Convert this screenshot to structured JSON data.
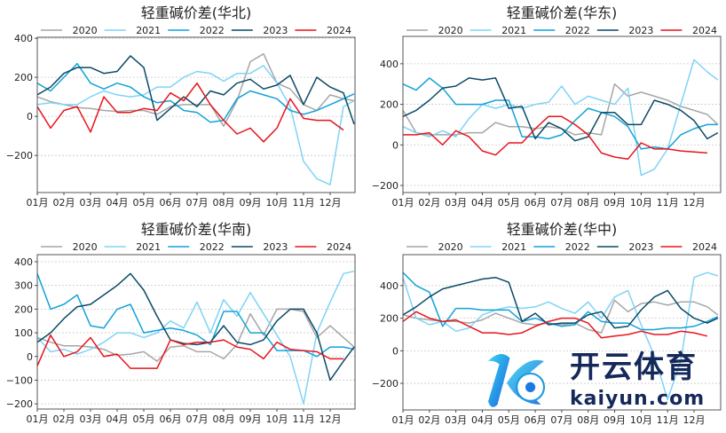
{
  "series_colors": {
    "2020": "#a6a6a6",
    "2021": "#7fd3f7",
    "2022": "#12a3d8",
    "2023": "#0b4a66",
    "2024": "#e8141c"
  },
  "watermark": {
    "brand_cn": "开云体育",
    "brand_en": "kaiyun.com"
  },
  "chart_data": [
    {
      "type": "line",
      "title": "轻重碱价差(华北)",
      "legend": "top",
      "xlabel": "",
      "ylabel": "",
      "grid": "horizontal dashed",
      "xticks": [
        "01月",
        "02月",
        "03月",
        "04月",
        "05月",
        "06月",
        "07月",
        "08月",
        "09月",
        "10月",
        "11月",
        "12月"
      ],
      "xlim": [
        1,
        12.93
      ],
      "ylim": [
        -390,
        405
      ],
      "yticks": [
        -200,
        0,
        200,
        400
      ],
      "x": [
        1,
        1.5,
        2,
        2.5,
        3,
        3.5,
        4,
        4.5,
        5,
        5.5,
        6,
        6.5,
        7,
        7.5,
        8,
        8.5,
        9,
        9.5,
        10,
        10.5,
        11,
        11.5,
        12,
        12.5,
        12.9
      ],
      "series": [
        {
          "name": "2020",
          "values": [
            100,
            75,
            60,
            45,
            40,
            30,
            25,
            30,
            30,
            10,
            50,
            60,
            60,
            60,
            -50,
            80,
            280,
            320,
            170,
            140,
            60,
            30,
            110,
            90,
            80
          ]
        },
        {
          "name": "2021",
          "values": [
            60,
            70,
            60,
            60,
            100,
            130,
            110,
            100,
            110,
            150,
            150,
            200,
            230,
            220,
            180,
            220,
            220,
            260,
            170,
            50,
            -230,
            -320,
            -350,
            50,
            80
          ]
        },
        {
          "name": "2022",
          "values": [
            170,
            130,
            200,
            270,
            170,
            140,
            170,
            150,
            100,
            70,
            80,
            30,
            20,
            -30,
            -20,
            90,
            130,
            110,
            90,
            30,
            10,
            30,
            60,
            90,
            115
          ]
        },
        {
          "name": "2023",
          "values": [
            110,
            150,
            220,
            250,
            250,
            220,
            230,
            310,
            250,
            -20,
            40,
            100,
            50,
            130,
            110,
            170,
            190,
            140,
            160,
            210,
            60,
            200,
            150,
            120,
            -40
          ]
        },
        {
          "name": "2024",
          "values": [
            50,
            -60,
            30,
            50,
            -80,
            100,
            20,
            20,
            40,
            30,
            120,
            80,
            170,
            60,
            -20,
            -90,
            -60,
            -130,
            -60,
            90,
            -10,
            -20,
            -20,
            -70,
            null
          ]
        }
      ]
    },
    {
      "type": "line",
      "title": "轻重碱价差(华东)",
      "legend": "top",
      "xlabel": "",
      "ylabel": "",
      "grid": "horizontal dashed",
      "xticks": [
        "01月",
        "02月",
        "03月",
        "04月",
        "05月",
        "06月",
        "07月",
        "08月",
        "09月",
        "10月",
        "11月",
        "12月"
      ],
      "xlim": [
        1,
        12.93
      ],
      "ylim": [
        -235,
        535
      ],
      "yticks": [
        -200,
        0,
        200,
        400
      ],
      "x": [
        1,
        1.5,
        2,
        2.5,
        3,
        3.5,
        4,
        4.5,
        5,
        5.5,
        6,
        6.5,
        7,
        7.5,
        8,
        8.5,
        9,
        9.5,
        10,
        10.5,
        11,
        11.5,
        12,
        12.5,
        12.9
      ],
      "series": [
        {
          "name": "2020",
          "values": [
            170,
            60,
            50,
            50,
            50,
            60,
            60,
            110,
            90,
            90,
            80,
            90,
            80,
            50,
            60,
            50,
            300,
            240,
            260,
            240,
            220,
            190,
            170,
            150,
            100
          ]
        },
        {
          "name": "2021",
          "values": [
            90,
            60,
            40,
            70,
            40,
            130,
            200,
            180,
            200,
            180,
            200,
            210,
            290,
            200,
            240,
            220,
            200,
            280,
            -150,
            -120,
            -20,
            200,
            420,
            360,
            320
          ]
        },
        {
          "name": "2022",
          "values": [
            300,
            270,
            330,
            280,
            200,
            200,
            200,
            220,
            220,
            40,
            40,
            30,
            50,
            120,
            180,
            160,
            140,
            90,
            -20,
            -10,
            -20,
            50,
            80,
            100,
            100
          ]
        },
        {
          "name": "2023",
          "values": [
            140,
            170,
            220,
            280,
            290,
            330,
            320,
            330,
            180,
            190,
            30,
            110,
            80,
            20,
            40,
            160,
            160,
            100,
            100,
            220,
            200,
            170,
            120,
            30,
            60
          ]
        },
        {
          "name": "2024",
          "values": [
            50,
            50,
            60,
            0,
            70,
            40,
            -30,
            -50,
            10,
            10,
            80,
            140,
            140,
            100,
            50,
            -40,
            -60,
            -70,
            10,
            -20,
            -20,
            -30,
            -35,
            -40,
            null
          ]
        }
      ]
    },
    {
      "type": "line",
      "title": "轻重碱价差(华南)",
      "legend": "top",
      "xlabel": "",
      "ylabel": "",
      "grid": "horizontal dashed",
      "xticks": [
        "01月",
        "02月",
        "03月",
        "04月",
        "05月",
        "06月",
        "07月",
        "08月",
        "09月",
        "10月",
        "11月",
        "12月"
      ],
      "xlim": [
        1,
        12.93
      ],
      "ylim": [
        -222,
        430
      ],
      "yticks": [
        -200,
        -100,
        0,
        100,
        200,
        300,
        400
      ],
      "x": [
        1,
        1.5,
        2,
        2.5,
        3,
        3.5,
        4,
        4.5,
        5,
        5.5,
        6,
        6.5,
        7,
        7.5,
        8,
        8.5,
        9,
        9.5,
        10,
        10.5,
        11,
        11.5,
        12,
        12.5,
        12.9
      ],
      "series": [
        {
          "name": "2020",
          "values": [
            80,
            60,
            45,
            45,
            40,
            30,
            5,
            10,
            20,
            -20,
            40,
            45,
            20,
            20,
            -10,
            50,
            180,
            90,
            200,
            200,
            190,
            80,
            130,
            80,
            40
          ]
        },
        {
          "name": "2021",
          "values": [
            80,
            20,
            30,
            10,
            30,
            60,
            100,
            100,
            80,
            100,
            150,
            120,
            230,
            100,
            240,
            170,
            270,
            180,
            90,
            0,
            -200,
            100,
            230,
            350,
            360
          ]
        },
        {
          "name": "2022",
          "values": [
            350,
            200,
            220,
            260,
            130,
            120,
            200,
            220,
            100,
            110,
            120,
            110,
            90,
            50,
            190,
            190,
            100,
            100,
            25,
            25,
            25,
            0,
            40,
            40,
            30
          ]
        },
        {
          "name": "2023",
          "values": [
            60,
            100,
            160,
            210,
            220,
            260,
            300,
            350,
            280,
            170,
            70,
            55,
            50,
            60,
            130,
            60,
            50,
            70,
            150,
            200,
            200,
            100,
            -100,
            -20,
            40
          ]
        },
        {
          "name": "2024",
          "values": [
            -40,
            90,
            0,
            20,
            80,
            0,
            10,
            -50,
            -50,
            -50,
            70,
            50,
            60,
            60,
            70,
            40,
            30,
            -10,
            60,
            30,
            25,
            20,
            -10,
            -10,
            null
          ]
        }
      ]
    },
    {
      "type": "line",
      "title": "轻重碱价差(华中)",
      "legend": "top",
      "xlabel": "",
      "ylabel": "",
      "grid": "horizontal dashed",
      "xticks": [
        "01月",
        "02月",
        "03月",
        "04月",
        "05月",
        "06月",
        "07月",
        "08月",
        "09月",
        "10月",
        "11月",
        "12月"
      ],
      "xlim": [
        1,
        12.93
      ],
      "ylim": [
        -363,
        590
      ],
      "yticks": [
        -200,
        0,
        200,
        400
      ],
      "x": [
        1,
        1.5,
        2,
        2.5,
        3,
        3.5,
        4,
        4.5,
        5,
        5.5,
        6,
        6.5,
        7,
        7.5,
        8,
        8.5,
        9,
        9.5,
        10,
        10.5,
        11,
        11.5,
        12,
        12.5,
        12.9
      ],
      "series": [
        {
          "name": "2020",
          "values": [
            220,
            200,
            190,
            180,
            180,
            170,
            190,
            230,
            200,
            170,
            160,
            170,
            160,
            170,
            130,
            110,
            310,
            240,
            290,
            300,
            280,
            300,
            300,
            270,
            220
          ]
        },
        {
          "name": "2021",
          "values": [
            450,
            200,
            160,
            180,
            120,
            140,
            220,
            250,
            270,
            260,
            270,
            300,
            260,
            230,
            300,
            200,
            330,
            370,
            160,
            -30,
            -300,
            -60,
            450,
            480,
            460
          ]
        },
        {
          "name": "2022",
          "values": [
            480,
            400,
            360,
            150,
            260,
            260,
            250,
            250,
            250,
            180,
            200,
            170,
            150,
            160,
            240,
            180,
            170,
            170,
            130,
            130,
            140,
            140,
            150,
            180,
            210
          ]
        },
        {
          "name": "2023",
          "values": [
            220,
            270,
            330,
            380,
            400,
            420,
            440,
            450,
            420,
            180,
            230,
            160,
            170,
            170,
            220,
            240,
            140,
            150,
            250,
            330,
            370,
            260,
            200,
            170,
            200
          ]
        },
        {
          "name": "2024",
          "values": [
            180,
            240,
            200,
            180,
            190,
            150,
            110,
            110,
            100,
            110,
            150,
            180,
            200,
            200,
            170,
            80,
            90,
            100,
            120,
            100,
            100,
            120,
            110,
            90,
            null
          ]
        }
      ]
    }
  ]
}
